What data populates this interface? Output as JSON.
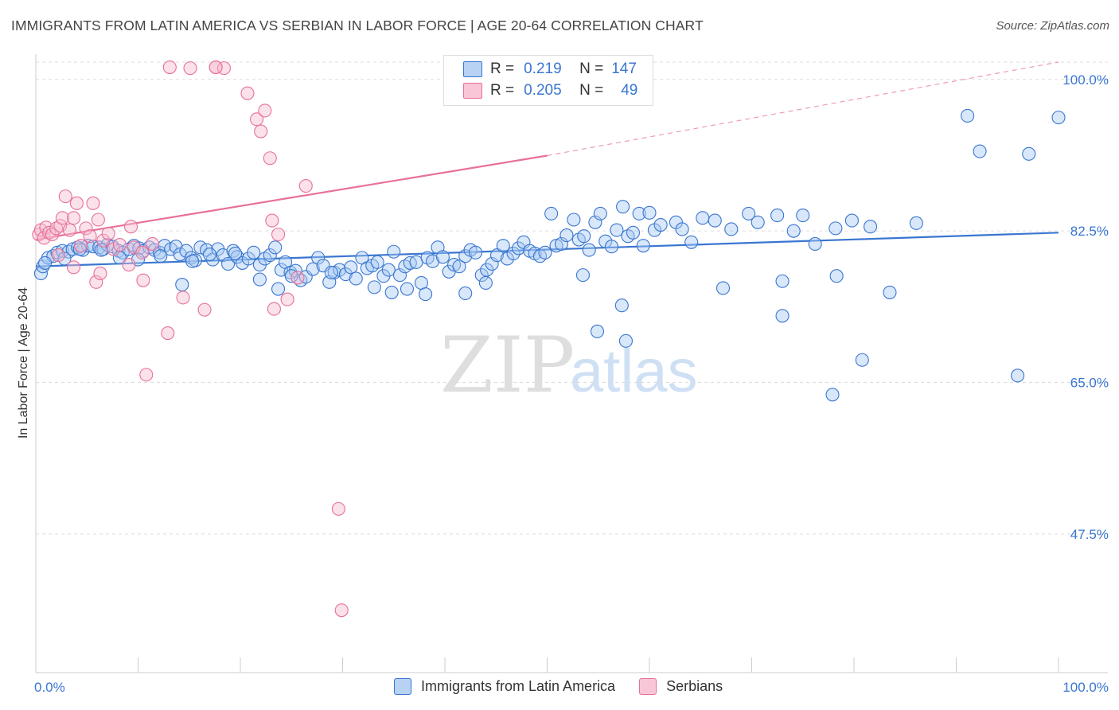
{
  "title": "IMMIGRANTS FROM LATIN AMERICA VS SERBIAN IN LABOR FORCE | AGE 20-64 CORRELATION CHART",
  "source": "Source: ZipAtlas.com",
  "watermark": {
    "zip": "ZIP",
    "atlas": "atlas"
  },
  "colors": {
    "blue": "#3a76d0",
    "blue_fill": "#a9c9f1",
    "pink": "#e8709a",
    "pink_fill": "#f7bdd1",
    "grid": "#dddddd"
  },
  "stats": [
    {
      "r_label": "R =",
      "r_value": "0.219",
      "n_label": "N =",
      "n_value": "147"
    },
    {
      "r_label": "R =",
      "r_value": "0.205",
      "n_label": "N =",
      "n_value": "49"
    }
  ],
  "legend": [
    {
      "label": "Immigrants from Latin America"
    },
    {
      "label": "Serbians"
    }
  ],
  "chart_data": {
    "type": "scatter",
    "title": "IMMIGRANTS FROM LATIN AMERICA VS SERBIAN IN LABOR FORCE | AGE 20-64 CORRELATION CHART",
    "xlabel": "",
    "ylabel": "In Labor Force | Age 20-64",
    "xlim": [
      0,
      100
    ],
    "ylim": [
      31.5,
      102
    ],
    "x_tick_labels": [
      "0.0%",
      "100.0%"
    ],
    "y_ticks": [
      100.0,
      82.5,
      65.0,
      47.5
    ],
    "y_tick_labels": [
      "100.0%",
      "82.5%",
      "65.0%",
      "47.5%"
    ],
    "grid": "horizontal dashed",
    "legend_position": "bottom-center",
    "series": [
      {
        "name": "Immigrants from Latin America",
        "color": "#3a76d0",
        "trend": {
          "x0": 0,
          "y0": 78.4,
          "x1": 100,
          "y1": 82.3
        },
        "points": [
          [
            0.5,
            77.6
          ],
          [
            0.7,
            78.4
          ],
          [
            1.2,
            79.4
          ],
          [
            1.7,
            79.6
          ],
          [
            2.1,
            80.0
          ],
          [
            2.6,
            80.2
          ],
          [
            3.2,
            80.1
          ],
          [
            3.6,
            80.4
          ],
          [
            4.1,
            80.6
          ],
          [
            4.6,
            80.3
          ],
          [
            5.1,
            80.8
          ],
          [
            5.6,
            80.7
          ],
          [
            6.2,
            80.6
          ],
          [
            6.6,
            80.4
          ],
          [
            7.0,
            80.9
          ],
          [
            7.5,
            80.7
          ],
          [
            8.1,
            80.2
          ],
          [
            8.5,
            80.0
          ],
          [
            9.1,
            80.4
          ],
          [
            9.6,
            80.8
          ],
          [
            10.1,
            80.5
          ],
          [
            10.5,
            80.2
          ],
          [
            11.1,
            80.6
          ],
          [
            11.6,
            80.3
          ],
          [
            12.1,
            80.0
          ],
          [
            12.6,
            80.8
          ],
          [
            13.2,
            80.4
          ],
          [
            13.7,
            80.7
          ],
          [
            14.1,
            79.8
          ],
          [
            14.7,
            80.2
          ],
          [
            15.2,
            79.4
          ],
          [
            15.6,
            79.1
          ],
          [
            16.1,
            80.6
          ],
          [
            16.7,
            80.3
          ],
          [
            17.3,
            79.2
          ],
          [
            17.8,
            80.4
          ],
          [
            18.3,
            79.7
          ],
          [
            18.8,
            78.7
          ],
          [
            19.3,
            80.2
          ],
          [
            19.7,
            79.5
          ],
          [
            20.2,
            78.8
          ],
          [
            20.8,
            79.3
          ],
          [
            21.3,
            80.0
          ],
          [
            21.9,
            78.6
          ],
          [
            22.4,
            79.3
          ],
          [
            22.9,
            79.7
          ],
          [
            23.4,
            80.6
          ],
          [
            24.0,
            78.0
          ],
          [
            24.4,
            78.9
          ],
          [
            24.9,
            77.7
          ],
          [
            25.4,
            77.9
          ],
          [
            25.9,
            76.8
          ],
          [
            26.4,
            77.2
          ],
          [
            27.1,
            78.1
          ],
          [
            27.6,
            79.4
          ],
          [
            28.1,
            78.5
          ],
          [
            28.7,
            76.6
          ],
          [
            29.2,
            77.7
          ],
          [
            29.7,
            78.0
          ],
          [
            30.3,
            77.5
          ],
          [
            30.8,
            78.3
          ],
          [
            31.3,
            77.0
          ],
          [
            31.9,
            79.4
          ],
          [
            32.4,
            78.2
          ],
          [
            32.9,
            78.5
          ],
          [
            33.4,
            78.9
          ],
          [
            34.0,
            77.3
          ],
          [
            34.5,
            78.0
          ],
          [
            35.0,
            80.1
          ],
          [
            35.6,
            77.4
          ],
          [
            36.1,
            78.4
          ],
          [
            36.6,
            78.8
          ],
          [
            37.2,
            78.9
          ],
          [
            37.7,
            76.5
          ],
          [
            38.3,
            79.4
          ],
          [
            38.8,
            79.0
          ],
          [
            39.3,
            80.6
          ],
          [
            39.8,
            79.5
          ],
          [
            40.4,
            77.8
          ],
          [
            40.9,
            78.6
          ],
          [
            41.4,
            78.4
          ],
          [
            42.0,
            79.6
          ],
          [
            42.5,
            80.3
          ],
          [
            43.0,
            80.0
          ],
          [
            43.6,
            77.4
          ],
          [
            44.1,
            78.0
          ],
          [
            44.6,
            78.7
          ],
          [
            45.1,
            79.7
          ],
          [
            45.7,
            80.8
          ],
          [
            46.1,
            79.3
          ],
          [
            46.7,
            79.9
          ],
          [
            47.2,
            80.5
          ],
          [
            47.7,
            81.2
          ],
          [
            48.3,
            80.2
          ],
          [
            48.8,
            79.9
          ],
          [
            49.3,
            79.6
          ],
          [
            49.8,
            80.0
          ],
          [
            50.4,
            84.5
          ],
          [
            50.9,
            80.8
          ],
          [
            51.4,
            81.0
          ],
          [
            51.9,
            82.0
          ],
          [
            52.6,
            83.8
          ],
          [
            53.1,
            81.5
          ],
          [
            53.6,
            81.9
          ],
          [
            54.1,
            80.3
          ],
          [
            54.7,
            83.5
          ],
          [
            55.2,
            84.5
          ],
          [
            55.7,
            81.3
          ],
          [
            56.3,
            80.7
          ],
          [
            56.8,
            82.6
          ],
          [
            57.4,
            85.3
          ],
          [
            57.9,
            81.9
          ],
          [
            58.4,
            82.3
          ],
          [
            59.0,
            84.5
          ],
          [
            59.4,
            80.8
          ],
          [
            60.0,
            84.6
          ],
          [
            60.5,
            82.6
          ],
          [
            61.1,
            83.2
          ],
          [
            62.6,
            83.5
          ],
          [
            63.2,
            82.7
          ],
          [
            64.1,
            81.2
          ],
          [
            65.2,
            84.0
          ],
          [
            66.4,
            83.7
          ],
          [
            68.0,
            82.7
          ],
          [
            69.7,
            84.5
          ],
          [
            70.6,
            83.5
          ],
          [
            72.5,
            84.3
          ],
          [
            74.1,
            82.5
          ],
          [
            75.0,
            84.3
          ],
          [
            78.2,
            82.8
          ],
          [
            79.8,
            83.7
          ],
          [
            81.6,
            83.0
          ],
          [
            83.5,
            75.4
          ],
          [
            86.1,
            83.4
          ],
          [
            91.1,
            95.8
          ],
          [
            92.3,
            91.7
          ],
          [
            78.3,
            77.3
          ],
          [
            76.2,
            81.0
          ],
          [
            73.0,
            76.7
          ],
          [
            67.2,
            75.9
          ],
          [
            73.0,
            72.7
          ],
          [
            57.3,
            73.9
          ],
          [
            53.5,
            77.4
          ],
          [
            44.0,
            76.5
          ],
          [
            42.0,
            75.3
          ],
          [
            38.1,
            75.2
          ],
          [
            36.3,
            75.8
          ],
          [
            34.8,
            75.4
          ],
          [
            33.1,
            76.0
          ],
          [
            28.9,
            77.7
          ],
          [
            25.0,
            77.3
          ],
          [
            23.7,
            75.8
          ],
          [
            21.9,
            76.9
          ],
          [
            19.5,
            79.9
          ],
          [
            17.0,
            79.8
          ],
          [
            15.3,
            79.0
          ],
          [
            14.3,
            76.3
          ],
          [
            12.2,
            79.6
          ],
          [
            10.0,
            79.2
          ],
          [
            8.2,
            79.4
          ],
          [
            6.4,
            80.3
          ],
          [
            4.3,
            80.4
          ],
          [
            2.8,
            79.3
          ],
          [
            0.9,
            78.8
          ],
          [
            57.7,
            69.8
          ],
          [
            54.9,
            70.9
          ],
          [
            77.9,
            63.6
          ],
          [
            80.8,
            67.6
          ],
          [
            96.0,
            65.8
          ],
          [
            97.1,
            91.4
          ],
          [
            100.0,
            95.6
          ]
        ]
      },
      {
        "name": "Serbians",
        "color": "#e8709a",
        "trend": {
          "x0": 0,
          "y0": 81.5,
          "x1": 50,
          "y1": 91.2
        },
        "trend_dashed": {
          "x0": 50,
          "y0": 91.2,
          "x1": 100,
          "y1": 102
        },
        "points": [
          [
            0.3,
            82.1
          ],
          [
            0.5,
            82.6
          ],
          [
            0.8,
            81.7
          ],
          [
            1.0,
            82.9
          ],
          [
            1.3,
            82.3
          ],
          [
            1.6,
            82.1
          ],
          [
            2.0,
            82.8
          ],
          [
            2.4,
            83.1
          ],
          [
            2.6,
            84.0
          ],
          [
            2.9,
            86.5
          ],
          [
            3.3,
            82.6
          ],
          [
            3.7,
            84.0
          ],
          [
            4.0,
            85.7
          ],
          [
            4.4,
            80.8
          ],
          [
            4.9,
            82.8
          ],
          [
            5.3,
            81.9
          ],
          [
            5.6,
            85.7
          ],
          [
            6.1,
            83.8
          ],
          [
            6.6,
            81.4
          ],
          [
            7.1,
            82.2
          ],
          [
            7.6,
            80.4
          ],
          [
            8.2,
            80.9
          ],
          [
            9.3,
            83.0
          ],
          [
            9.6,
            80.6
          ],
          [
            10.4,
            80.0
          ],
          [
            11.4,
            81.0
          ],
          [
            13.1,
            101.4
          ],
          [
            15.1,
            101.3
          ],
          [
            17.6,
            101.4
          ],
          [
            18.4,
            101.3
          ],
          [
            20.7,
            98.4
          ],
          [
            21.6,
            95.4
          ],
          [
            22.0,
            94.0
          ],
          [
            22.4,
            96.4
          ],
          [
            22.9,
            90.9
          ],
          [
            23.1,
            83.7
          ],
          [
            23.3,
            73.5
          ],
          [
            23.7,
            82.1
          ],
          [
            24.6,
            74.6
          ],
          [
            25.6,
            77.1
          ],
          [
            26.4,
            87.7
          ],
          [
            29.6,
            50.4
          ],
          [
            29.9,
            38.7
          ],
          [
            10.5,
            76.8
          ],
          [
            10.8,
            65.9
          ],
          [
            12.9,
            70.7
          ],
          [
            14.4,
            74.8
          ],
          [
            5.9,
            76.6
          ],
          [
            6.3,
            77.6
          ],
          [
            9.1,
            78.6
          ],
          [
            3.7,
            78.3
          ],
          [
            2.2,
            79.7
          ],
          [
            16.5,
            73.4
          ],
          [
            17.6,
            101.4
          ]
        ]
      }
    ]
  }
}
